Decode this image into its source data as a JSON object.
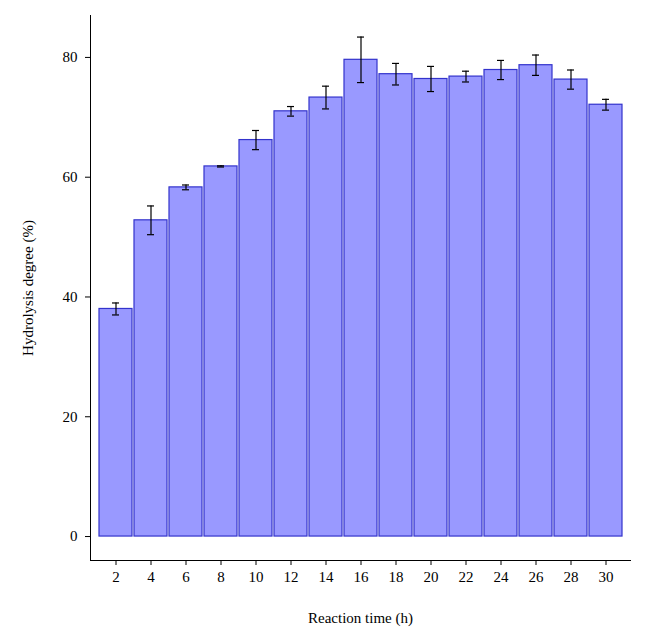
{
  "chart_data": {
    "type": "bar",
    "x_label": "Reaction time (h)",
    "y_label": "Hydrolysis degree (%)",
    "categories": [
      "2",
      "4",
      "6",
      "8",
      "10",
      "12",
      "14",
      "16",
      "18",
      "20",
      "22",
      "24",
      "26",
      "28",
      "30"
    ],
    "values": [
      38.0,
      52.8,
      58.3,
      61.8,
      66.2,
      71.0,
      73.3,
      79.6,
      77.2,
      76.4,
      76.8,
      77.9,
      78.7,
      76.3,
      72.1
    ],
    "errors": [
      1.0,
      2.4,
      0.4,
      0.1,
      1.6,
      0.8,
      1.9,
      3.8,
      1.8,
      2.1,
      0.9,
      1.6,
      1.7,
      1.6,
      0.9
    ],
    "color": "#9999ff",
    "ylim": [
      -4,
      87
    ],
    "yticks": [
      0,
      20,
      40,
      60,
      80
    ],
    "grid": false
  }
}
